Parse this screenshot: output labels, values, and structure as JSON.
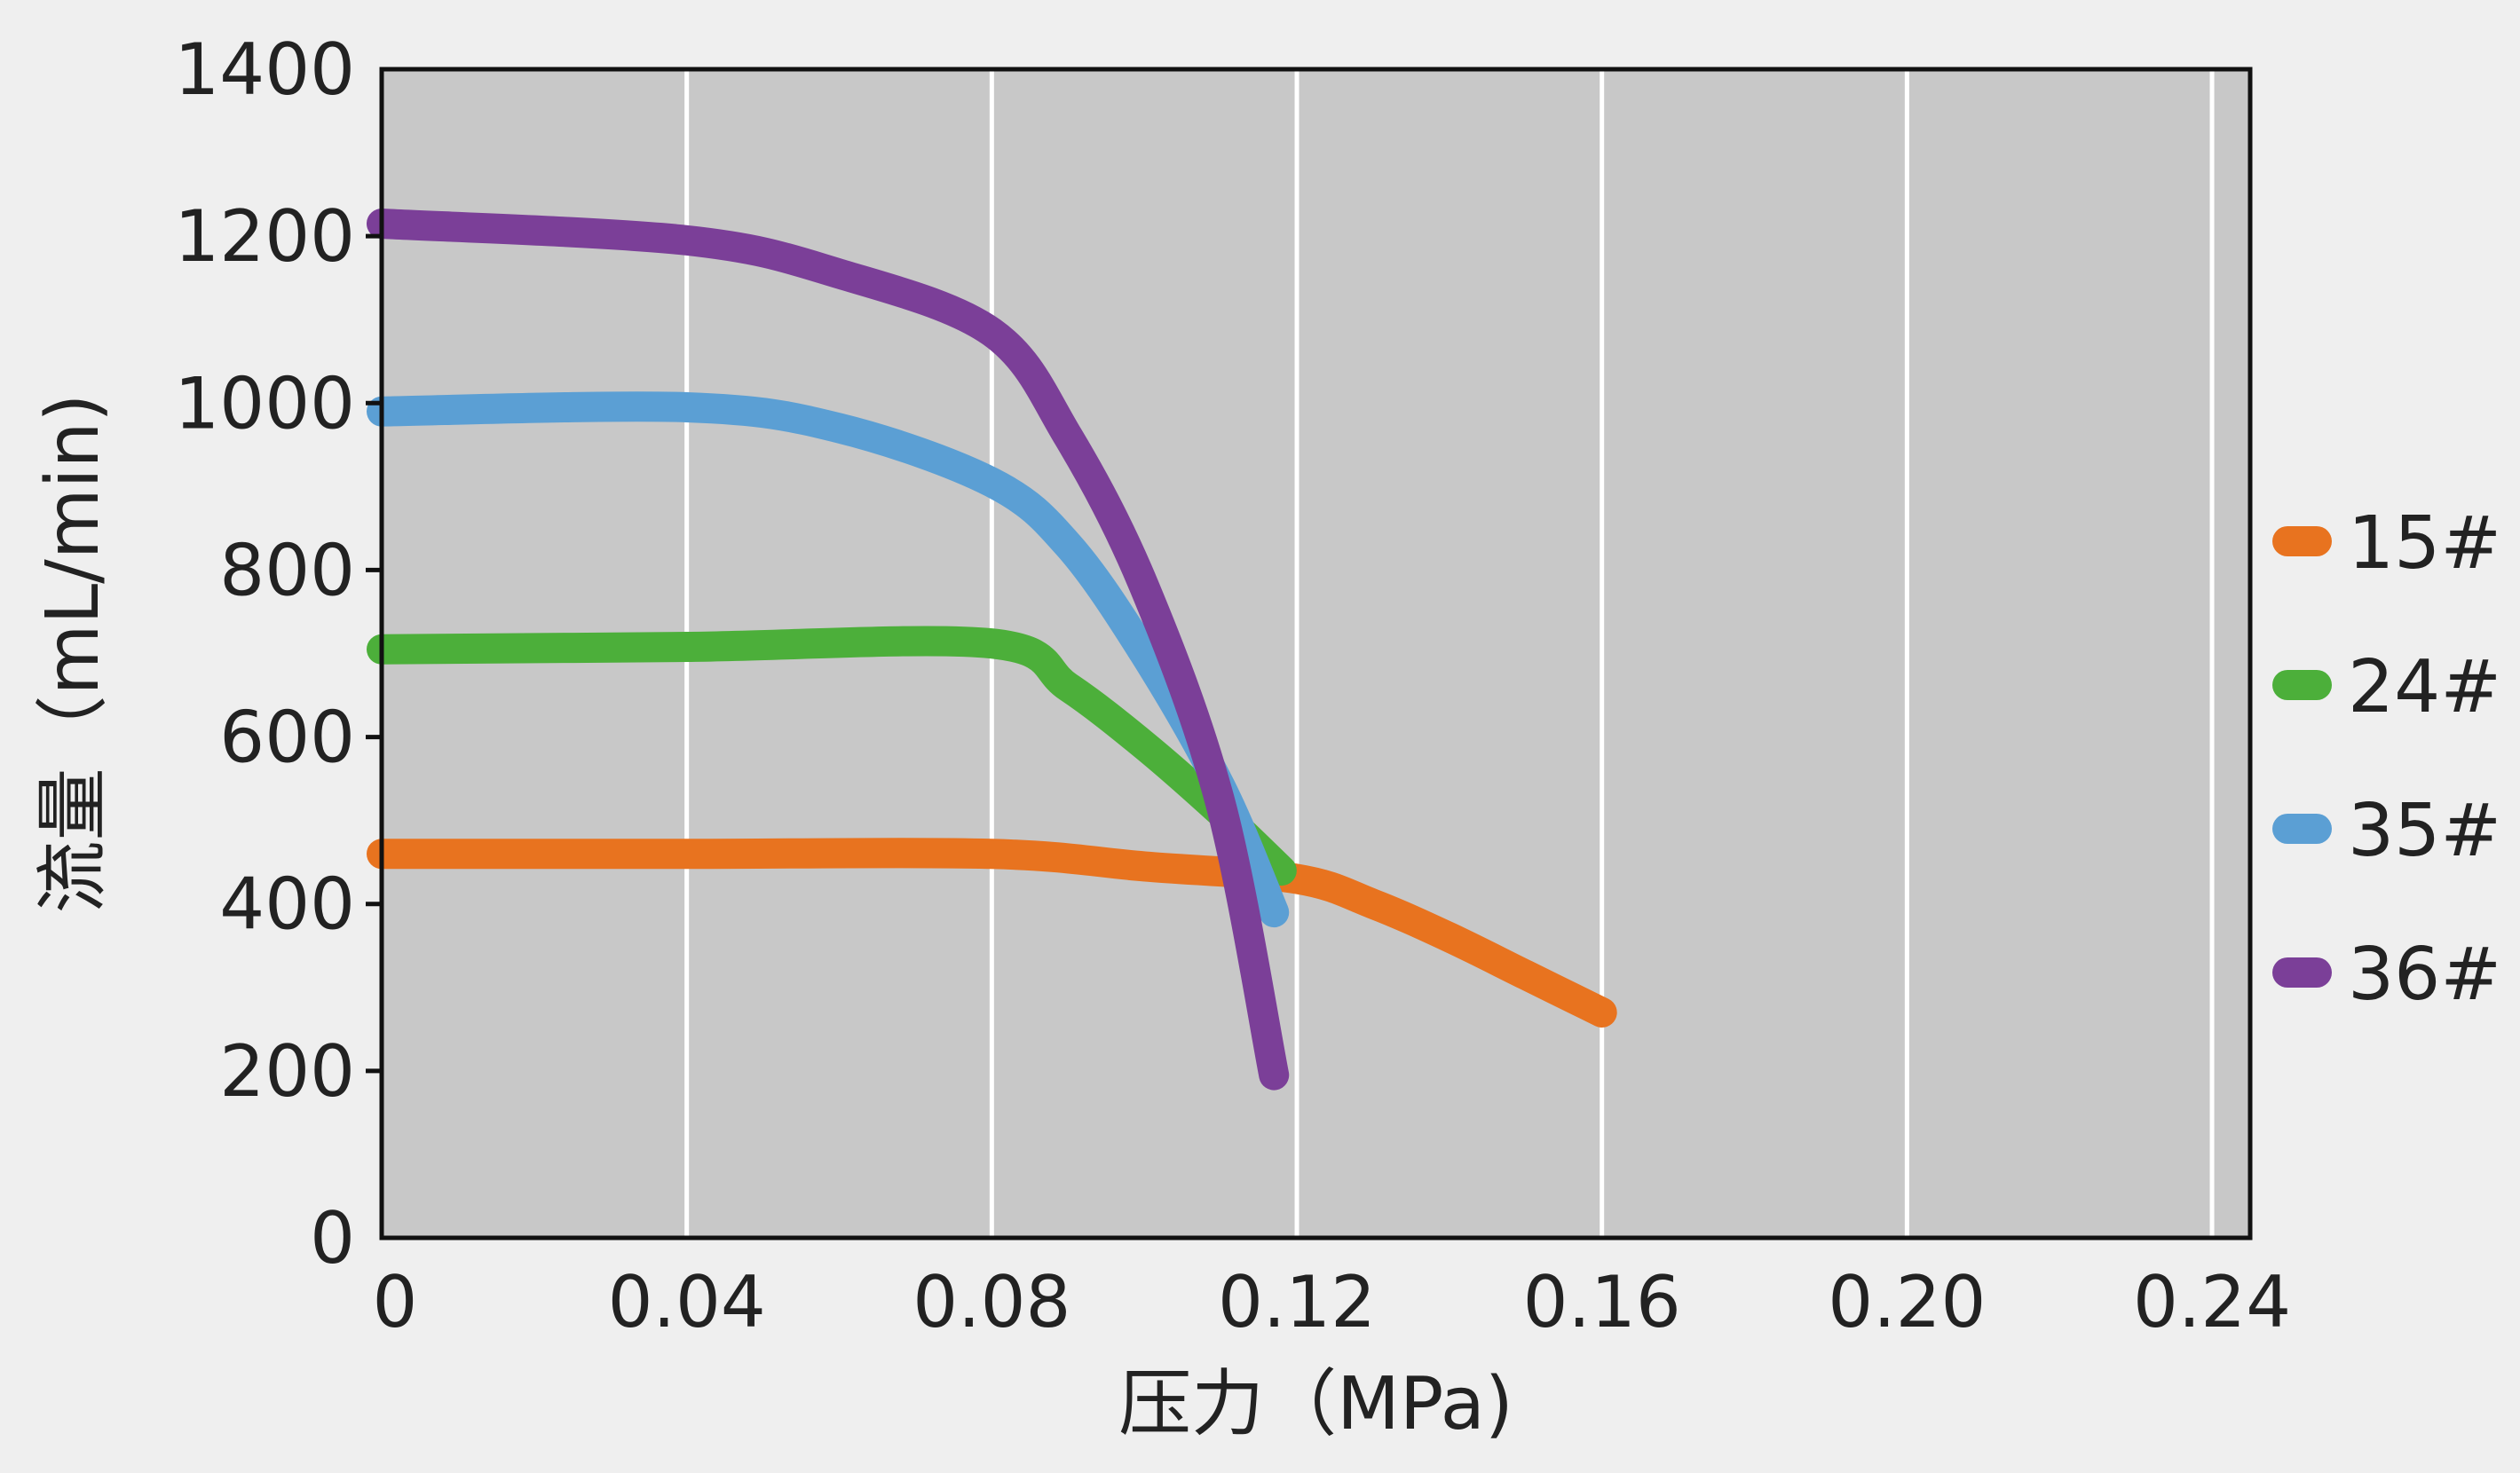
{
  "chart_data": {
    "type": "line",
    "xlabel": "压力（MPa)",
    "ylabel": "流量（mL/min)",
    "xlim": [
      0,
      0.245
    ],
    "ylim": [
      0,
      1400
    ],
    "x_ticks": [
      0,
      0.04,
      0.08,
      0.12,
      0.16,
      0.2,
      0.24
    ],
    "x_tick_labels": [
      "0",
      "0.04",
      "0.08",
      "0.12",
      "0.16",
      "0.20",
      "0.24"
    ],
    "y_ticks": [
      0,
      200,
      400,
      600,
      800,
      1000,
      1200,
      1400
    ],
    "y_tick_labels": [
      "0",
      "200",
      "400",
      "600",
      "800",
      "1000",
      "1200",
      "1400"
    ],
    "grid": "vertical",
    "legend_position": "right",
    "series": [
      {
        "name": "15#",
        "color": "#e8731f",
        "points": [
          [
            0,
            460
          ],
          [
            0.04,
            460
          ],
          [
            0.08,
            460
          ],
          [
            0.1,
            445
          ],
          [
            0.12,
            430
          ],
          [
            0.13,
            400
          ],
          [
            0.14,
            360
          ],
          [
            0.15,
            315
          ],
          [
            0.16,
            270
          ]
        ]
      },
      {
        "name": "24#",
        "color": "#4caf3a",
        "points": [
          [
            0,
            705
          ],
          [
            0.04,
            708
          ],
          [
            0.08,
            712
          ],
          [
            0.09,
            660
          ],
          [
            0.1,
            590
          ],
          [
            0.11,
            510
          ],
          [
            0.118,
            440
          ]
        ]
      },
      {
        "name": "35#",
        "color": "#5b9fd4",
        "points": [
          [
            0,
            990
          ],
          [
            0.04,
            995
          ],
          [
            0.06,
            970
          ],
          [
            0.08,
            905
          ],
          [
            0.09,
            830
          ],
          [
            0.1,
            700
          ],
          [
            0.11,
            540
          ],
          [
            0.117,
            390
          ]
        ]
      },
      {
        "name": "36#",
        "color": "#7b3f98",
        "points": [
          [
            0,
            1215
          ],
          [
            0.04,
            1195
          ],
          [
            0.06,
            1155
          ],
          [
            0.08,
            1085
          ],
          [
            0.09,
            960
          ],
          [
            0.1,
            780
          ],
          [
            0.11,
            520
          ],
          [
            0.117,
            195
          ]
        ]
      }
    ]
  }
}
